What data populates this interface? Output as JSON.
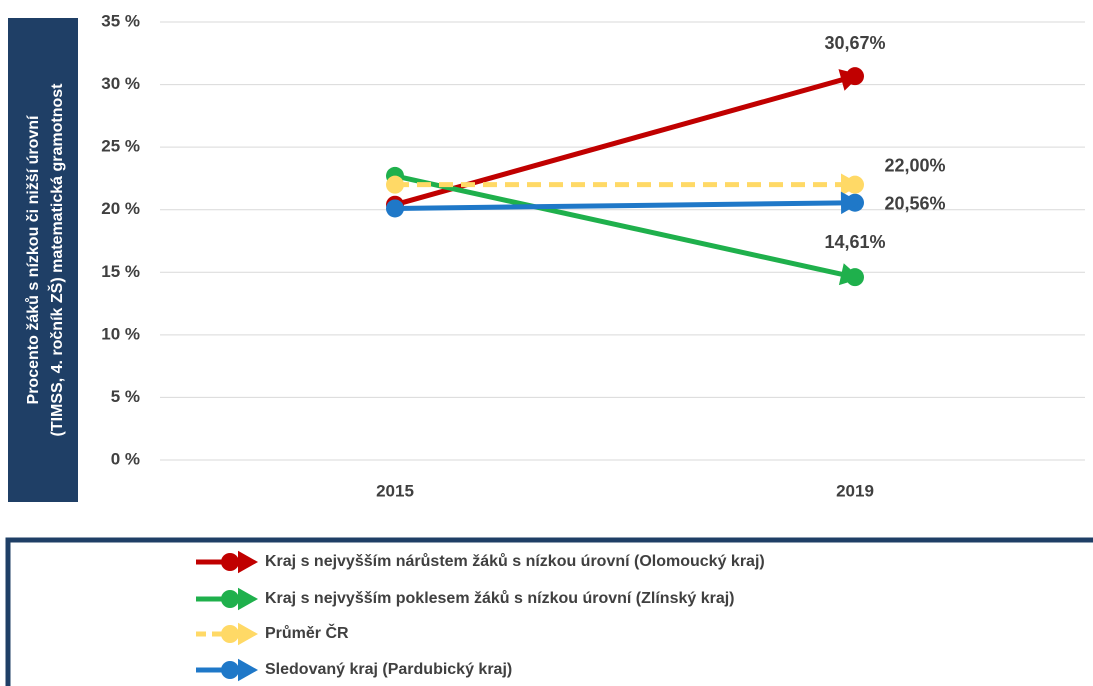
{
  "chart_data": {
    "type": "line",
    "ylabel": [
      "Procento žáků s nízkou či nižší úrovní",
      "(TIMSS, 4. ročník ZŠ) matematická gramotnost"
    ],
    "categories": [
      "2015",
      "2019"
    ],
    "series": [
      {
        "name": "Kraj s nejvyšším nárůstem žáků s nízkou úrovní (Olomoucký kraj)",
        "color": "#c00000",
        "values": [
          20.4,
          30.67
        ],
        "value_labels": [
          null,
          "30,67%"
        ]
      },
      {
        "name": "Kraj s nejvyšším poklesem žáků s nízkou úrovní (Zlínský kraj)",
        "color": "#1fb04c",
        "values": [
          22.7,
          14.61
        ],
        "value_labels": [
          null,
          "14,61%"
        ]
      },
      {
        "name": "Průměr ČR",
        "color": "#ffd966",
        "dashed": true,
        "values": [
          22.0,
          22.0
        ],
        "value_labels": [
          null,
          "22,00%"
        ]
      },
      {
        "name": "Sledovaný kraj (Pardubický kraj)",
        "color": "#1f78c8",
        "values": [
          20.1,
          20.56
        ],
        "value_labels": [
          null,
          "20,56%"
        ]
      }
    ],
    "ylim": [
      0,
      35
    ],
    "yticks": [
      {
        "value": 0,
        "label": "0 %"
      },
      {
        "value": 5,
        "label": "5 %"
      },
      {
        "value": 10,
        "label": "10 %"
      },
      {
        "value": 15,
        "label": "15 %"
      },
      {
        "value": 20,
        "label": "20 %"
      },
      {
        "value": 25,
        "label": "25 %"
      },
      {
        "value": 30,
        "label": "30 %"
      },
      {
        "value": 35,
        "label": "35 %"
      }
    ],
    "grid": true,
    "legend": "bottom"
  }
}
